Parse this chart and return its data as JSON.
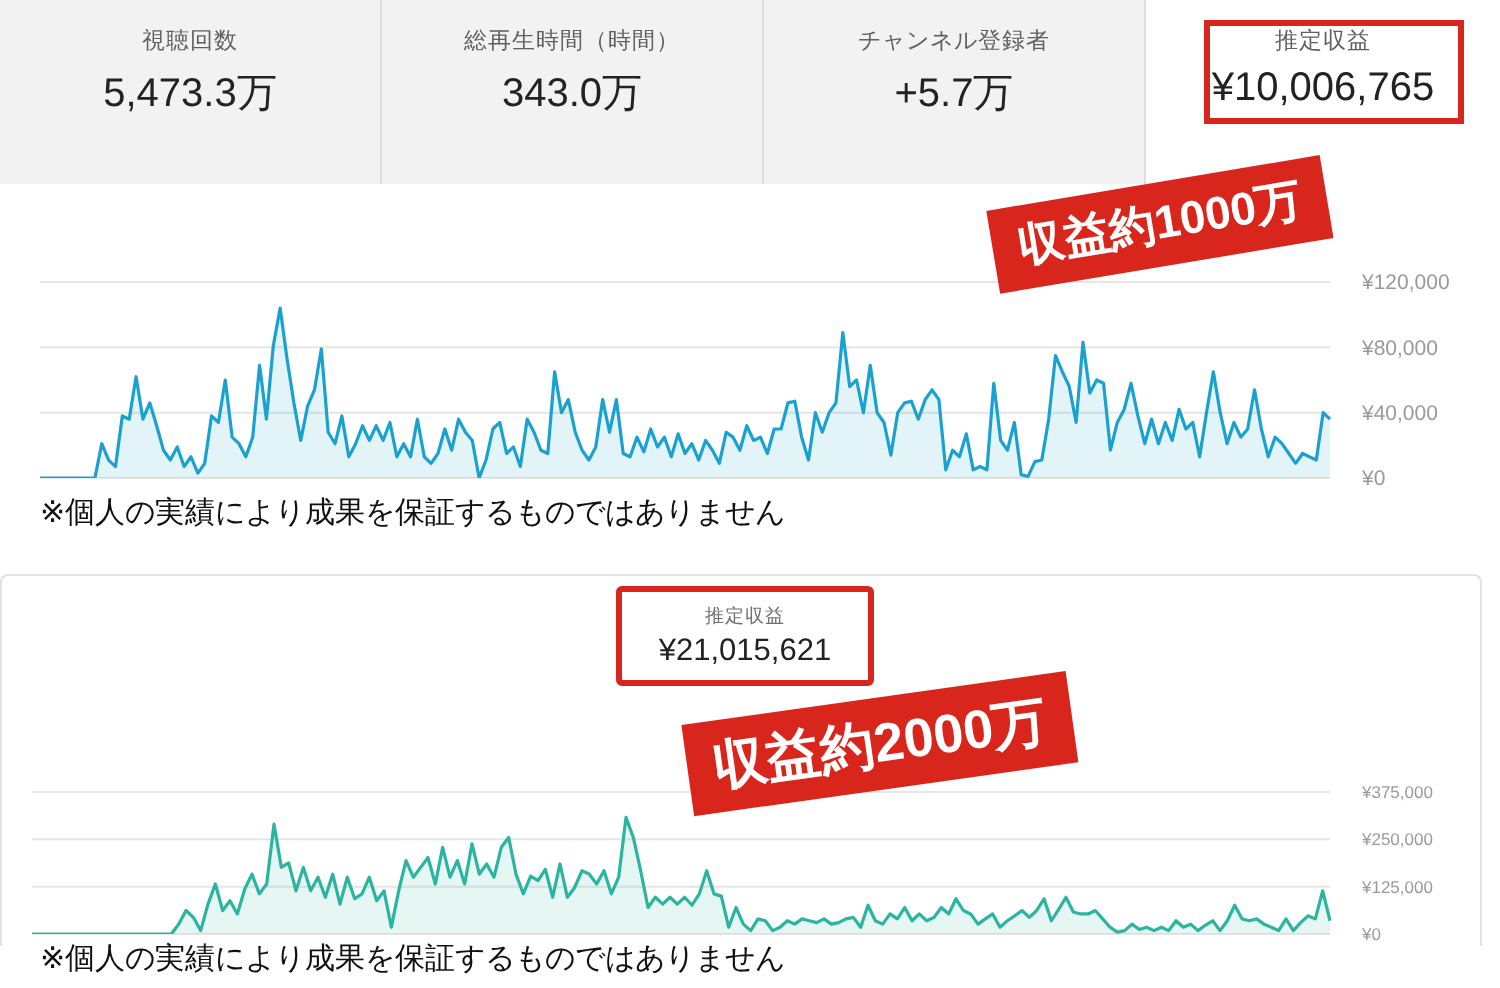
{
  "chart_data": [
    {
      "type": "other",
      "categories": [
        "視聴回数",
        "総再生時間（時間）",
        "チャンネル登録者",
        "推定収益"
      ],
      "value_labels": [
        "5,473.3万",
        "343.0万",
        "+5.7万",
        "¥10,006,765"
      ]
    },
    {
      "type": "area",
      "color": "#1ba1cf",
      "grid": "y",
      "tick_labels": "y",
      "ylim": [
        0,
        120000
      ],
      "yticks": [
        {
          "value": 0,
          "label": "¥0"
        },
        {
          "value": 40000,
          "label": "¥40,000"
        },
        {
          "value": 80000,
          "label": "¥80,000"
        },
        {
          "value": 120000,
          "label": "¥120,000"
        }
      ],
      "annotations": [
        "収益約1000万",
        "※個人の実績により成果を保証するものではありません"
      ],
      "categories": [
        null,
        null,
        null,
        null,
        null,
        null,
        null,
        null,
        null,
        null,
        null,
        null,
        null,
        null,
        null,
        null,
        null,
        null,
        null,
        null,
        null,
        null,
        null,
        null,
        null,
        null,
        null,
        null,
        null,
        null,
        null,
        null,
        null,
        null,
        null,
        null,
        null,
        null,
        null,
        null,
        null,
        null,
        null,
        null,
        null,
        null,
        null,
        null,
        null,
        null,
        null,
        null,
        null,
        null,
        null,
        null,
        null,
        null,
        null,
        null,
        null,
        null,
        null,
        null,
        null,
        null,
        null,
        null,
        null,
        null,
        null,
        null,
        null,
        null,
        null,
        null,
        null,
        null,
        null,
        null,
        null,
        null,
        null,
        null,
        null,
        null,
        null,
        null,
        null,
        null,
        null,
        null,
        null,
        null,
        null,
        null,
        null,
        null,
        null,
        null,
        null,
        null,
        null,
        null,
        null,
        null,
        null,
        null,
        null,
        null,
        null,
        null,
        null,
        null,
        null,
        null,
        null,
        null,
        null,
        null,
        null,
        null,
        null,
        null,
        null,
        null,
        null,
        null,
        null,
        null,
        null,
        null,
        null,
        null,
        null,
        null,
        null,
        null,
        null,
        null,
        null,
        null,
        null,
        null,
        null,
        null,
        null,
        null,
        null,
        null,
        null,
        null,
        null,
        null,
        null,
        null,
        null,
        null,
        null,
        null,
        null,
        null,
        null,
        null,
        null,
        null,
        null,
        null,
        null,
        null,
        null,
        null,
        null,
        null,
        null,
        null,
        null,
        null,
        null,
        null,
        null,
        null,
        null,
        null,
        null,
        null,
        null,
        null,
        null
      ],
      "values": [
        0,
        0,
        0,
        0,
        0,
        0,
        0,
        0,
        0,
        21000,
        11000,
        7000,
        38000,
        36000,
        62000,
        36000,
        46000,
        32000,
        17000,
        11000,
        19000,
        7000,
        13000,
        3000,
        9000,
        38000,
        34000,
        60000,
        25000,
        21000,
        13000,
        25000,
        69000,
        36000,
        81000,
        104000,
        73000,
        46000,
        23000,
        44000,
        54000,
        79000,
        28000,
        21000,
        38000,
        13000,
        21000,
        32000,
        23000,
        32000,
        23000,
        34000,
        13000,
        21000,
        13000,
        36000,
        13000,
        9000,
        15000,
        30000,
        17000,
        36000,
        28000,
        23000,
        0,
        11000,
        30000,
        34000,
        15000,
        19000,
        7000,
        36000,
        28000,
        17000,
        15000,
        65000,
        40000,
        48000,
        28000,
        17000,
        11000,
        19000,
        48000,
        28000,
        48000,
        15000,
        13000,
        25000,
        16000,
        30000,
        19000,
        25000,
        13000,
        27000,
        15000,
        21000,
        11000,
        23000,
        17000,
        9000,
        28000,
        25000,
        17000,
        32000,
        23000,
        25000,
        15000,
        30000,
        30000,
        46000,
        47000,
        25000,
        11000,
        40000,
        28000,
        40000,
        46000,
        89000,
        56000,
        60000,
        40000,
        69000,
        40000,
        34000,
        14000,
        40000,
        46000,
        47000,
        36000,
        48000,
        54000,
        48000,
        5000,
        17000,
        13000,
        27000,
        5000,
        7000,
        5000,
        58000,
        23000,
        17000,
        34000,
        2000,
        1000,
        10000,
        11000,
        36000,
        75000,
        65000,
        56000,
        34000,
        83000,
        52000,
        60000,
        58000,
        17000,
        34000,
        42000,
        58000,
        38000,
        21000,
        36000,
        21000,
        34000,
        23000,
        42000,
        30000,
        34000,
        13000,
        40000,
        65000,
        40000,
        21000,
        34000,
        25000,
        30000,
        54000,
        30000,
        13000,
        25000,
        21000,
        15000,
        9000,
        15000,
        13000,
        11000,
        40000,
        36000
      ]
    },
    {
      "type": "area",
      "title": "推定収益",
      "subtitle": "¥21,015,621",
      "color": "#2bb5a0",
      "grid": "y",
      "tick_labels": "y",
      "ylim": [
        0,
        375000
      ],
      "yticks": [
        {
          "value": 0,
          "label": "¥0"
        },
        {
          "value": 125000,
          "label": "¥125,000"
        },
        {
          "value": 250000,
          "label": "¥250,000"
        },
        {
          "value": 375000,
          "label": "¥375,000"
        }
      ],
      "annotations": [
        "収益約2000万",
        "※個人の実績により成果を保証するものではありません"
      ],
      "categories": [
        null,
        null,
        null,
        null,
        null,
        null,
        null,
        null,
        null,
        null,
        null,
        null,
        null,
        null,
        null,
        null,
        null,
        null,
        null,
        null,
        null,
        null,
        null,
        null,
        null,
        null,
        null,
        null,
        null,
        null,
        null,
        null,
        null,
        null,
        null,
        null,
        null,
        null,
        null,
        null,
        null,
        null,
        null,
        null,
        null,
        null,
        null,
        null,
        null,
        null,
        null,
        null,
        null,
        null,
        null,
        null,
        null,
        null,
        null,
        null,
        null,
        null,
        null,
        null,
        null,
        null,
        null,
        null,
        null,
        null,
        null,
        null,
        null,
        null,
        null,
        null,
        null,
        null,
        null,
        null,
        null,
        null,
        null,
        null,
        null,
        null,
        null,
        null,
        null,
        null,
        null,
        null,
        null,
        null,
        null,
        null,
        null,
        null,
        null,
        null,
        null,
        null,
        null,
        null,
        null,
        null,
        null,
        null,
        null,
        null,
        null,
        null,
        null,
        null,
        null,
        null,
        null,
        null,
        null,
        null,
        null,
        null,
        null,
        null,
        null,
        null,
        null,
        null,
        null,
        null,
        null,
        null,
        null,
        null,
        null,
        null,
        null,
        null,
        null,
        null,
        null,
        null,
        null,
        null,
        null,
        null,
        null,
        null,
        null,
        null,
        null,
        null,
        null,
        null,
        null,
        null,
        null,
        null,
        null,
        null,
        null,
        null,
        null,
        null,
        null,
        null,
        null,
        null,
        null,
        null,
        null,
        null,
        null,
        null,
        null,
        null,
        null,
        null
      ],
      "values": [
        0,
        0,
        0,
        0,
        0,
        0,
        0,
        0,
        0,
        0,
        0,
        0,
        0,
        0,
        0,
        0,
        0,
        0,
        0,
        0,
        26000,
        62000,
        44000,
        9000,
        79000,
        132000,
        62000,
        88000,
        53000,
        118000,
        158000,
        106000,
        132000,
        290000,
        176000,
        188000,
        114000,
        176000,
        114000,
        150000,
        97000,
        158000,
        79000,
        150000,
        93000,
        106000,
        150000,
        88000,
        114000,
        18000,
        114000,
        194000,
        150000,
        176000,
        202000,
        132000,
        229000,
        150000,
        194000,
        132000,
        238000,
        158000,
        185000,
        150000,
        229000,
        255000,
        158000,
        106000,
        153000,
        141000,
        171000,
        97000,
        185000,
        97000,
        123000,
        167000,
        158000,
        132000,
        167000,
        106000,
        150000,
        308000,
        255000,
        167000,
        70000,
        97000,
        79000,
        97000,
        79000,
        97000,
        76000,
        106000,
        167000,
        106000,
        100000,
        18000,
        70000,
        26000,
        9000,
        40000,
        35000,
        9000,
        18000,
        35000,
        26000,
        40000,
        35000,
        30000,
        40000,
        26000,
        30000,
        40000,
        44000,
        18000,
        76000,
        35000,
        26000,
        53000,
        40000,
        70000,
        35000,
        53000,
        35000,
        44000,
        70000,
        53000,
        93000,
        62000,
        53000,
        26000,
        40000,
        53000,
        18000,
        35000,
        48000,
        62000,
        44000,
        62000,
        93000,
        35000,
        65000,
        97000,
        58000,
        53000,
        53000,
        62000,
        40000,
        18000,
        5000,
        9000,
        26000,
        12000,
        18000,
        9000,
        18000,
        9000,
        35000,
        18000,
        26000,
        9000,
        23000,
        35000,
        9000,
        35000,
        76000,
        40000,
        35000,
        40000,
        26000,
        18000,
        9000,
        40000,
        9000,
        30000,
        48000,
        40000,
        114000,
        35000
      ]
    }
  ]
}
